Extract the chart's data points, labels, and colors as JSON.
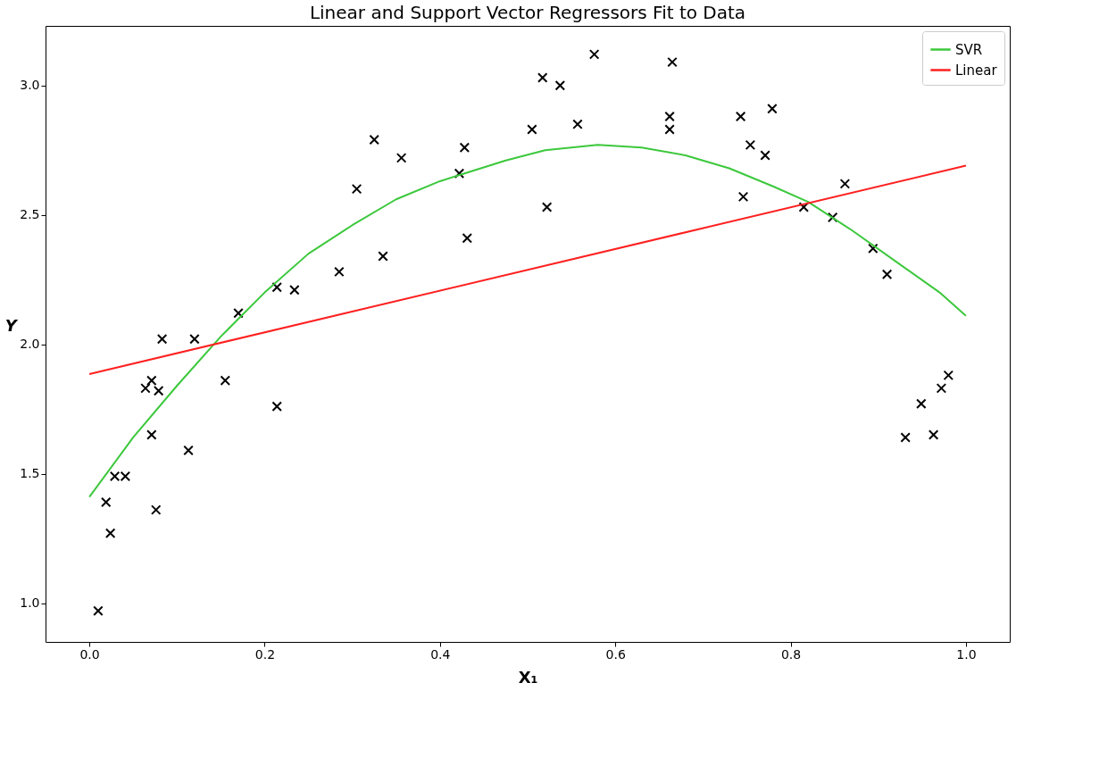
{
  "chart_data": {
    "type": "scatter",
    "title": "Linear and Support Vector Regressors Fit to Data",
    "xlabel": "X₁",
    "ylabel": "Y",
    "xlim": [
      -0.05,
      1.05
    ],
    "ylim": [
      0.85,
      3.23
    ],
    "xticks": [
      {
        "value": 0,
        "label": "0.0"
      },
      0.2,
      0.4,
      0.6,
      0.8,
      {
        "value": 1,
        "label": "1.0"
      }
    ],
    "yticks": [
      {
        "value": 1,
        "label": "1.0"
      },
      1.5,
      {
        "value": 2,
        "label": "2.0"
      },
      2.5,
      {
        "value": 3,
        "label": "3.0"
      }
    ],
    "grid": false,
    "legend": "top right",
    "series": [
      {
        "color": "#000000",
        "marker": "cross",
        "x": [
          0.01,
          0.019,
          0.024,
          0.029,
          0.041,
          0.064,
          0.071,
          0.071,
          0.079,
          0.076,
          0.083,
          0.113,
          0.12,
          0.155,
          0.17,
          0.214,
          0.214,
          0.234,
          0.285,
          0.305,
          0.325,
          0.335,
          0.356,
          0.422,
          0.428,
          0.431,
          0.505,
          0.517,
          0.522,
          0.537,
          0.557,
          0.576,
          0.662,
          0.662,
          0.665,
          0.743,
          0.746,
          0.754,
          0.771,
          0.779,
          0.815,
          0.848,
          0.862,
          0.894,
          0.91,
          0.931,
          0.949,
          0.963,
          0.972,
          0.98
        ],
        "values": [
          0.97,
          1.39,
          1.27,
          1.49,
          1.49,
          1.83,
          1.86,
          1.65,
          1.82,
          1.36,
          2.02,
          1.59,
          2.02,
          1.86,
          2.12,
          2.22,
          1.76,
          2.21,
          2.28,
          2.6,
          2.79,
          2.34,
          2.72,
          2.66,
          2.76,
          2.41,
          2.83,
          3.03,
          2.53,
          3.0,
          2.85,
          3.12,
          2.88,
          2.83,
          3.09,
          2.88,
          2.57,
          2.77,
          2.73,
          2.91,
          2.53,
          2.49,
          2.62,
          2.37,
          2.27,
          1.64,
          1.77,
          1.65,
          1.83,
          1.88
        ]
      },
      {
        "type": "line",
        "name": "SVR",
        "color": "#3cc83c",
        "x": [
          0,
          0.05,
          0.1,
          0.15,
          0.2,
          0.25,
          0.3,
          0.35,
          0.4,
          0.475,
          0.52,
          0.58,
          0.63,
          0.68,
          0.73,
          0.78,
          0.82,
          0.87,
          0.92,
          0.97,
          1.0
        ],
        "values": [
          1.41,
          1.64,
          1.84,
          2.03,
          2.2,
          2.35,
          2.46,
          2.56,
          2.63,
          2.71,
          2.75,
          2.77,
          2.76,
          2.73,
          2.68,
          2.61,
          2.55,
          2.44,
          2.32,
          2.2,
          2.11
        ]
      },
      {
        "type": "line",
        "name": "Linear",
        "color": "#ff2020",
        "x": [
          0,
          1.0
        ],
        "values": [
          1.885,
          2.69
        ]
      }
    ]
  }
}
